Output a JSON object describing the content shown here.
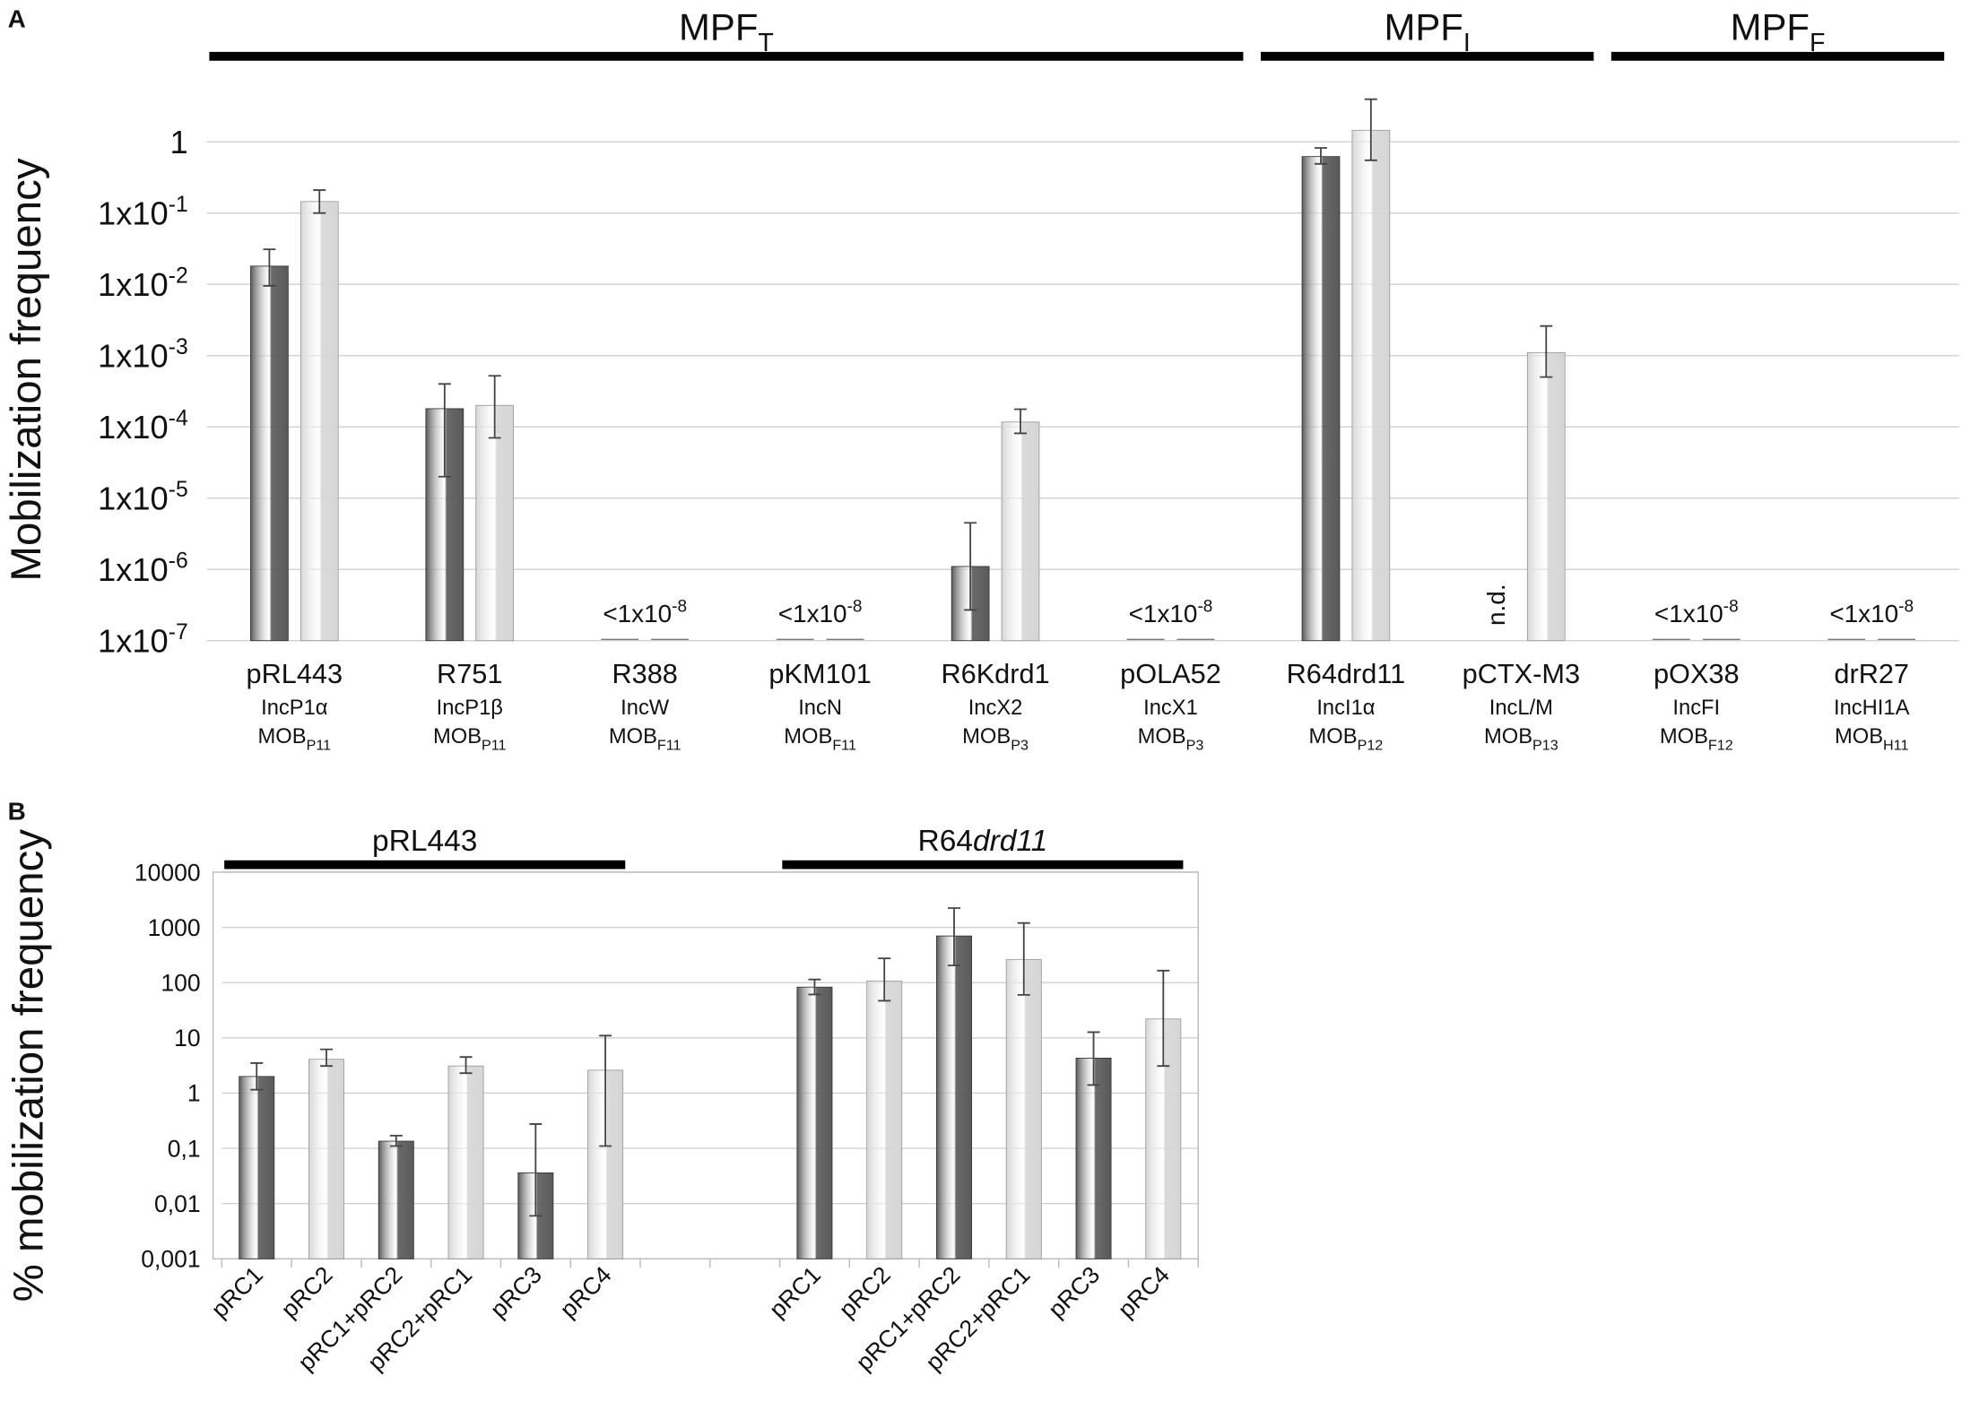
{
  "chart_data": [
    {
      "type": "bar",
      "panel_label": "A",
      "y_label": "Mobilization frequency",
      "log_scale": true,
      "grid": true,
      "ylim": [
        1e-07,
        4
      ],
      "yticks": [
        {
          "value": 1e-07,
          "label": "1x10",
          "sup": "-7"
        },
        {
          "value": 1e-06,
          "label": "1x10",
          "sup": "-6"
        },
        {
          "value": 1e-05,
          "label": "1x10",
          "sup": "-5"
        },
        {
          "value": 0.0001,
          "label": "1x10",
          "sup": "-4"
        },
        {
          "value": 0.001,
          "label": "1x10",
          "sup": "-3"
        },
        {
          "value": 0.01,
          "label": "1x10",
          "sup": "-2"
        },
        {
          "value": 0.1,
          "label": "1x10",
          "sup": "-1"
        },
        1
      ],
      "categories": [
        "pRL443",
        "R751",
        "R388",
        "pKM101",
        "R6Kdrd1",
        "pOLA52",
        "R64drd11",
        "pCTX-M3",
        "pOX38",
        "drR27"
      ],
      "inc_groups": [
        "IncP1α",
        "IncP1β",
        "IncW",
        "IncN",
        "IncX2",
        "IncX1",
        "IncI1α",
        "IncL/M",
        "IncFI",
        "IncHI1A"
      ],
      "mob": [
        {
          "label": "MOB",
          "sub": "P11"
        },
        {
          "label": "MOB",
          "sub": "P11"
        },
        {
          "label": "MOB",
          "sub": "F11"
        },
        {
          "label": "MOB",
          "sub": "F11"
        },
        {
          "label": "MOB",
          "sub": "P3"
        },
        {
          "label": "MOB",
          "sub": "P3"
        },
        {
          "label": "MOB",
          "sub": "P12"
        },
        {
          "label": "MOB",
          "sub": "P13"
        },
        {
          "label": "MOB",
          "sub": "F12"
        },
        {
          "label": "MOB",
          "sub": "H11"
        }
      ],
      "floor_labels": [
        null,
        null,
        {
          "label": "<1x10",
          "sup": "-8"
        },
        {
          "label": "<1x10",
          "sup": "-8"
        },
        null,
        {
          "label": "<1x10",
          "sup": "-8"
        },
        null,
        null,
        {
          "label": "<1x10",
          "sup": "-8"
        },
        {
          "label": "<1x10",
          "sup": "-8"
        }
      ],
      "groups": [
        {
          "label": "MPF",
          "sub": "T",
          "start": 0,
          "end": 5
        },
        {
          "label": "MPF",
          "sub": "I",
          "start": 6,
          "end": 7
        },
        {
          "label": "MPF",
          "sub": "F",
          "start": 8,
          "end": 9
        }
      ],
      "series": [
        {
          "color": "#5a5a5a",
          "values": [
            0.018,
            0.00018,
            null,
            null,
            1.1e-06,
            null,
            0.62,
            null,
            null,
            null
          ],
          "errors_plus": [
            0.013,
            0.00022,
            null,
            null,
            3.4e-06,
            null,
            0.2,
            null,
            null,
            null
          ],
          "errors_minus": [
            0.0085,
            0.00016,
            null,
            null,
            8.3e-07,
            null,
            0.13,
            null,
            null,
            null
          ],
          "value_labels": [
            null,
            null,
            null,
            null,
            null,
            null,
            null,
            "n.d.",
            null,
            null
          ]
        },
        {
          "color": "#d6d6d6",
          "values": [
            0.145,
            0.0002,
            null,
            null,
            0.000117,
            null,
            1.45,
            0.0011,
            null,
            null
          ],
          "errors_plus": [
            0.065,
            0.00032,
            null,
            null,
            6e-05,
            null,
            2.5,
            0.0015,
            null,
            null
          ],
          "errors_minus": [
            0.045,
            0.00013,
            null,
            null,
            3.6e-05,
            null,
            0.9,
            0.0006,
            null,
            null
          ]
        }
      ]
    },
    {
      "type": "bar",
      "panel_label": "B",
      "y_label": "% mobilization frequency",
      "log_scale": true,
      "grid": true,
      "ylim": [
        0.001,
        10000
      ],
      "yticks": [
        {
          "value": 0.001,
          "label": "0,001"
        },
        {
          "value": 0.01,
          "label": "0,01"
        },
        {
          "value": 0.1,
          "label": "0,1"
        },
        1,
        10,
        100,
        1000,
        10000
      ],
      "categories": [
        "pRC1",
        "pRC2",
        "pRC1+pRC2",
        "pRC2+pRC1",
        "pRC3",
        "pRC4",
        null,
        null,
        "pRC1",
        "pRC2",
        "pRC1+pRC2",
        "pRC2+pRC1",
        "pRC3",
        "pRC4"
      ],
      "groups": [
        {
          "label": "pRL443",
          "start": 0,
          "end": 5
        },
        {
          "label": "R64",
          "label_italic": "drd11",
          "start": 8,
          "end": 13
        }
      ],
      "series": [
        {
          "color": "#5a5a5a",
          "values": [
            2.0,
            null,
            0.135,
            null,
            0.036,
            null,
            null,
            null,
            83,
            null,
            700,
            null,
            4.3,
            null
          ],
          "errors_plus": [
            1.5,
            null,
            0.035,
            null,
            0.24,
            null,
            null,
            null,
            31,
            null,
            1540,
            null,
            8.4,
            null
          ],
          "errors_minus": [
            0.85,
            null,
            0.025,
            null,
            0.03,
            null,
            null,
            null,
            22,
            null,
            495,
            null,
            2.9,
            null
          ]
        },
        {
          "color": "#d6d6d6",
          "values": [
            null,
            4.1,
            null,
            3.1,
            null,
            2.6,
            null,
            null,
            null,
            107,
            null,
            263,
            null,
            22
          ],
          "errors_plus": [
            null,
            2.1,
            null,
            1.4,
            null,
            8.4,
            null,
            null,
            null,
            168,
            null,
            937,
            null,
            143
          ],
          "errors_minus": [
            null,
            1.0,
            null,
            0.8,
            null,
            2.49,
            null,
            null,
            null,
            60,
            null,
            203,
            null,
            18.9
          ]
        }
      ]
    }
  ]
}
